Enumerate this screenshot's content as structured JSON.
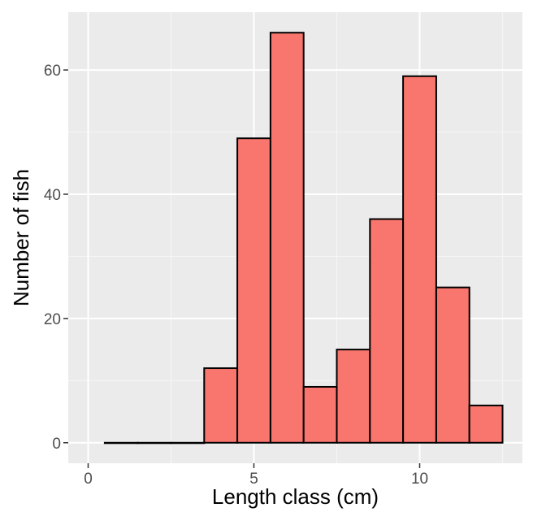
{
  "chart_data": {
    "type": "bar",
    "xlabel": "Length class (cm)",
    "ylabel": "Number of fish",
    "bin_width": 1,
    "bins": [
      {
        "x": 1,
        "count": 0
      },
      {
        "x": 2,
        "count": 0
      },
      {
        "x": 3,
        "count": 0
      },
      {
        "x": 4,
        "count": 12
      },
      {
        "x": 5,
        "count": 49
      },
      {
        "x": 6,
        "count": 66
      },
      {
        "x": 7,
        "count": 9
      },
      {
        "x": 8,
        "count": 15
      },
      {
        "x": 9,
        "count": 36
      },
      {
        "x": 10,
        "count": 59
      },
      {
        "x": 11,
        "count": 25
      },
      {
        "x": 12,
        "count": 6
      }
    ],
    "xlim": [
      -0.6,
      13.1
    ],
    "ylim": [
      -3.3,
      69.3
    ],
    "x_ticks": [
      0,
      5,
      10
    ],
    "x_tick_labels": [
      "0",
      "5",
      "10"
    ],
    "y_ticks": [
      0,
      20,
      40,
      60
    ],
    "y_tick_labels": [
      "0",
      "20",
      "40",
      "60"
    ],
    "grid": true,
    "colors": {
      "bar_fill": "#F8766D",
      "bar_stroke": "#000000",
      "panel_background": "#EBEBEB",
      "grid_major": "#FFFFFF"
    }
  }
}
